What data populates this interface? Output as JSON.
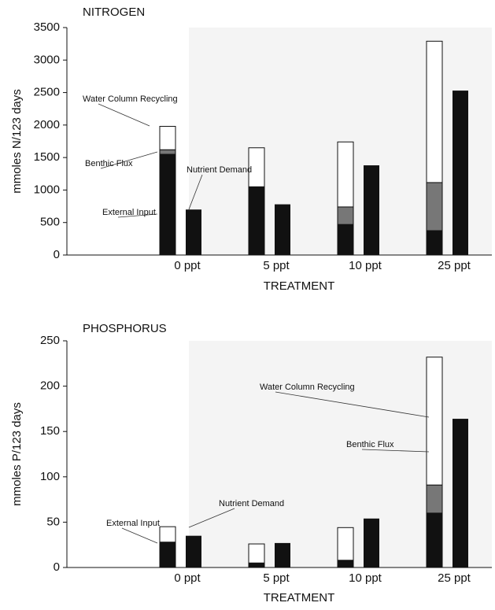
{
  "chart_data": [
    {
      "type": "bar",
      "title": "NITROGEN",
      "xlabel": "TREATMENT",
      "ylabel": "mmoles N/123 days",
      "categories": [
        "0 ppt",
        "5 ppt",
        "10 ppt",
        "25 ppt"
      ],
      "series": [
        {
          "name": "External Input",
          "color": "#111111",
          "values": [
            1550,
            1050,
            470,
            375
          ]
        },
        {
          "name": "Benthic Flux",
          "color": "#777777",
          "values": [
            70,
            0,
            270,
            740
          ]
        },
        {
          "name": "Water Column Recycling",
          "color": "#ffffff",
          "values": [
            360,
            600,
            1000,
            2175
          ]
        },
        {
          "name": "Nutrient Demand",
          "color": "#111111",
          "values": [
            700,
            780,
            1380,
            2530
          ]
        }
      ],
      "ylim": [
        0,
        3500
      ],
      "yticks": [
        0,
        500,
        1000,
        1500,
        2000,
        2500,
        3000,
        3500
      ]
    },
    {
      "type": "bar",
      "title": "PHOSPHORUS",
      "xlabel": "TREATMENT",
      "ylabel": "mmoles P/123 days",
      "categories": [
        "0 ppt",
        "5 ppt",
        "10 ppt",
        "25 ppt"
      ],
      "series": [
        {
          "name": "External Input",
          "color": "#111111",
          "values": [
            28,
            5,
            8,
            60
          ]
        },
        {
          "name": "Benthic Flux",
          "color": "#777777",
          "values": [
            0,
            0,
            0,
            31
          ]
        },
        {
          "name": "Water Column Recycling",
          "color": "#ffffff",
          "values": [
            17,
            21,
            36,
            141
          ]
        },
        {
          "name": "Nutrient Demand",
          "color": "#111111",
          "values": [
            35,
            27,
            54,
            164
          ]
        }
      ],
      "ylim": [
        0,
        250
      ],
      "yticks": [
        0,
        50,
        100,
        150,
        200,
        250
      ]
    }
  ]
}
